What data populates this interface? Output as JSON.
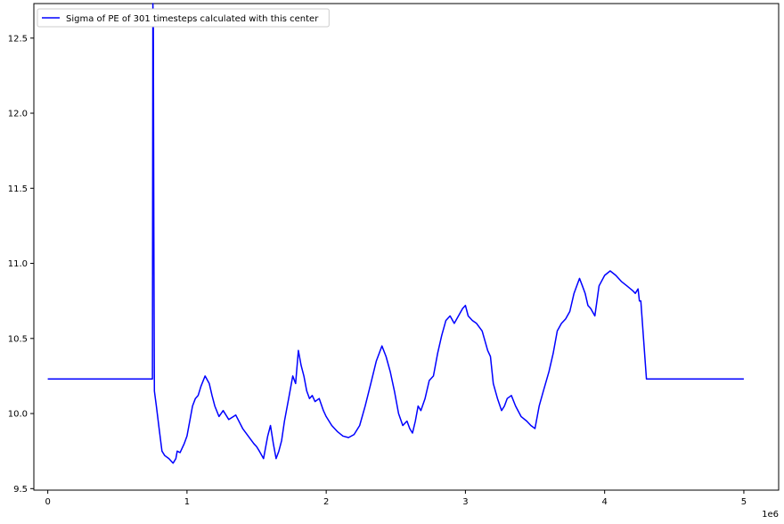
{
  "chart_data": {
    "type": "line",
    "title": "",
    "xlabel": "",
    "ylabel": "",
    "x_offset_label": "1e6",
    "xlim": [
      -0.1,
      5.25
    ],
    "ylim": [
      9.49,
      12.73
    ],
    "xticks": [
      0,
      1,
      2,
      3,
      4,
      5
    ],
    "xtick_labels": [
      "0",
      "1",
      "2",
      "3",
      "4",
      "5"
    ],
    "yticks": [
      9.5,
      10.0,
      10.5,
      11.0,
      11.5,
      12.0,
      12.5
    ],
    "ytick_labels": [
      "9.5",
      "10.0",
      "10.5",
      "11.0",
      "11.5",
      "12.0",
      "12.5"
    ],
    "grid": false,
    "legend_position": "top-left",
    "series": [
      {
        "name": "Sigma of PE of 301 timesteps calculated with this center",
        "color": "#0000ff",
        "x": [
          0,
          0.75,
          0.752,
          0.755,
          0.758,
          0.762,
          0.766,
          0.78,
          0.8,
          0.82,
          0.84,
          0.87,
          0.9,
          0.92,
          0.93,
          0.95,
          0.98,
          1.0,
          1.02,
          1.04,
          1.06,
          1.08,
          1.1,
          1.13,
          1.16,
          1.18,
          1.2,
          1.23,
          1.26,
          1.3,
          1.35,
          1.4,
          1.44,
          1.48,
          1.5,
          1.52,
          1.55,
          1.58,
          1.6,
          1.62,
          1.64,
          1.66,
          1.68,
          1.7,
          1.73,
          1.76,
          1.78,
          1.8,
          1.82,
          1.84,
          1.86,
          1.88,
          1.9,
          1.92,
          1.95,
          1.98,
          2.0,
          2.04,
          2.08,
          2.12,
          2.16,
          2.2,
          2.24,
          2.28,
          2.32,
          2.36,
          2.4,
          2.43,
          2.46,
          2.49,
          2.52,
          2.55,
          2.58,
          2.6,
          2.62,
          2.64,
          2.66,
          2.68,
          2.71,
          2.74,
          2.77,
          2.8,
          2.83,
          2.86,
          2.89,
          2.92,
          2.95,
          2.98,
          3.0,
          3.02,
          3.05,
          3.08,
          3.12,
          3.16,
          3.18,
          3.2,
          3.23,
          3.26,
          3.28,
          3.3,
          3.33,
          3.36,
          3.4,
          3.44,
          3.47,
          3.5,
          3.53,
          3.56,
          3.6,
          3.63,
          3.66,
          3.69,
          3.72,
          3.75,
          3.78,
          3.8,
          3.82,
          3.84,
          3.86,
          3.88,
          3.9,
          3.93,
          3.96,
          4.0,
          4.04,
          4.08,
          4.12,
          4.16,
          4.2,
          4.22,
          4.24,
          4.25,
          4.26,
          4.3,
          5.0
        ],
        "y": [
          10.23,
          10.23,
          10.23,
          12.73,
          12.6,
          11.2,
          10.15,
          10.05,
          9.9,
          9.75,
          9.72,
          9.7,
          9.67,
          9.7,
          9.75,
          9.74,
          9.8,
          9.85,
          9.95,
          10.05,
          10.1,
          10.12,
          10.18,
          10.25,
          10.2,
          10.12,
          10.05,
          9.98,
          10.02,
          9.96,
          9.99,
          9.9,
          9.85,
          9.8,
          9.78,
          9.75,
          9.7,
          9.85,
          9.92,
          9.8,
          9.7,
          9.75,
          9.82,
          9.95,
          10.1,
          10.25,
          10.2,
          10.42,
          10.32,
          10.25,
          10.15,
          10.1,
          10.12,
          10.08,
          10.1,
          10.02,
          9.98,
          9.92,
          9.88,
          9.85,
          9.84,
          9.86,
          9.92,
          10.05,
          10.2,
          10.35,
          10.45,
          10.38,
          10.28,
          10.15,
          10.0,
          9.92,
          9.95,
          9.9,
          9.87,
          9.95,
          10.05,
          10.02,
          10.1,
          10.22,
          10.25,
          10.4,
          10.52,
          10.62,
          10.65,
          10.6,
          10.65,
          10.7,
          10.72,
          10.65,
          10.62,
          10.6,
          10.55,
          10.42,
          10.38,
          10.2,
          10.1,
          10.02,
          10.05,
          10.1,
          10.12,
          10.05,
          9.98,
          9.95,
          9.92,
          9.9,
          10.05,
          10.15,
          10.28,
          10.4,
          10.55,
          10.6,
          10.63,
          10.68,
          10.8,
          10.85,
          10.9,
          10.85,
          10.8,
          10.72,
          10.7,
          10.65,
          10.85,
          10.92,
          10.95,
          10.92,
          10.88,
          10.85,
          10.82,
          10.8,
          10.83,
          10.75,
          10.75,
          10.23,
          10.23
        ]
      }
    ]
  }
}
